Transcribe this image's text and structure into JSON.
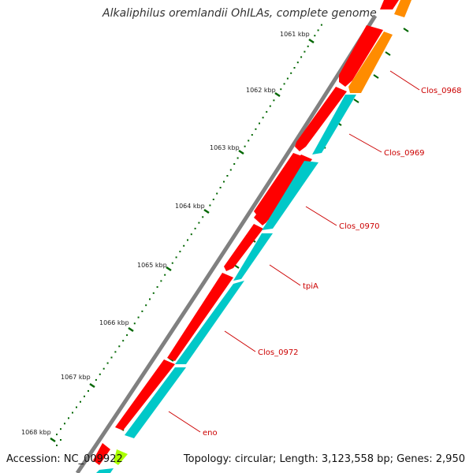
{
  "title": "Alkaliphilus oremlandii OhILAs, complete genome",
  "footer": {
    "accession": "Accession: NC_009922",
    "summary": "Topology: circular; Length: 3,123,558 bp; Genes: 2,950"
  },
  "colors": {
    "backbone": "#808080",
    "strand_forward": "#ff0000",
    "strand_reverse": "#00c8c8",
    "gene_orange": "#ff8c00",
    "gene_green": "#aaff00",
    "tick_major": "#006600",
    "label_line": "#cc0000",
    "label_text": "#cc0000"
  },
  "ruler": {
    "labels": [
      "1061 kbp",
      "1062 kbp",
      "1063 kbp",
      "1064 kbp",
      "1065 kbp",
      "1066 kbp",
      "1067 kbp",
      "1068 kbp"
    ]
  },
  "gene_labels": [
    "Clos_0968",
    "Clos_0969",
    "Clos_0970",
    "tpiA",
    "Clos_0972",
    "eno"
  ]
}
